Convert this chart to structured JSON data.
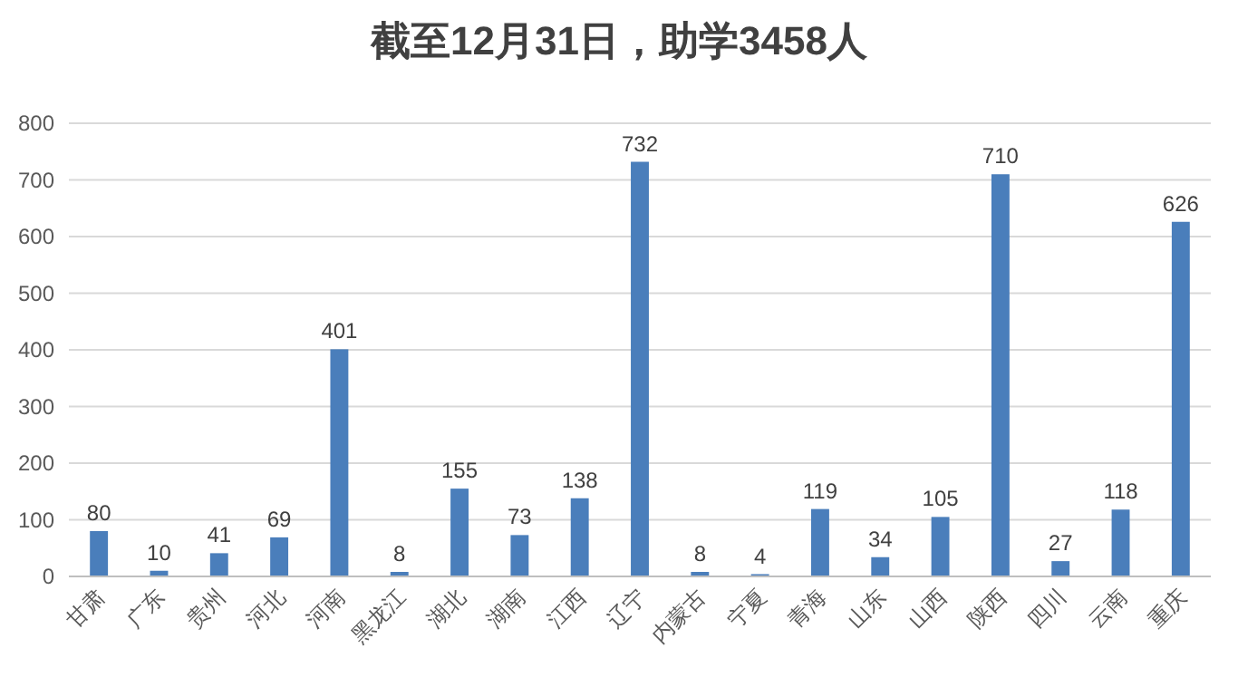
{
  "chart_data": {
    "type": "bar",
    "title": "截至12月31日，助学3458人",
    "categories": [
      "甘肃",
      "广东",
      "贵州",
      "河北",
      "河南",
      "黑龙江",
      "湖北",
      "湖南",
      "江西",
      "辽宁",
      "内蒙古",
      "宁夏",
      "青海",
      "山东",
      "山西",
      "陕西",
      "四川",
      "云南",
      "重庆"
    ],
    "values": [
      80,
      10,
      41,
      69,
      401,
      8,
      155,
      73,
      138,
      732,
      8,
      4,
      119,
      34,
      105,
      710,
      27,
      118,
      626
    ],
    "color": "#4a7ebb",
    "ylim": [
      0,
      800
    ],
    "yticks": [
      0,
      100,
      200,
      300,
      400,
      500,
      600,
      700,
      800
    ],
    "grid": "y",
    "data_labels": true
  }
}
